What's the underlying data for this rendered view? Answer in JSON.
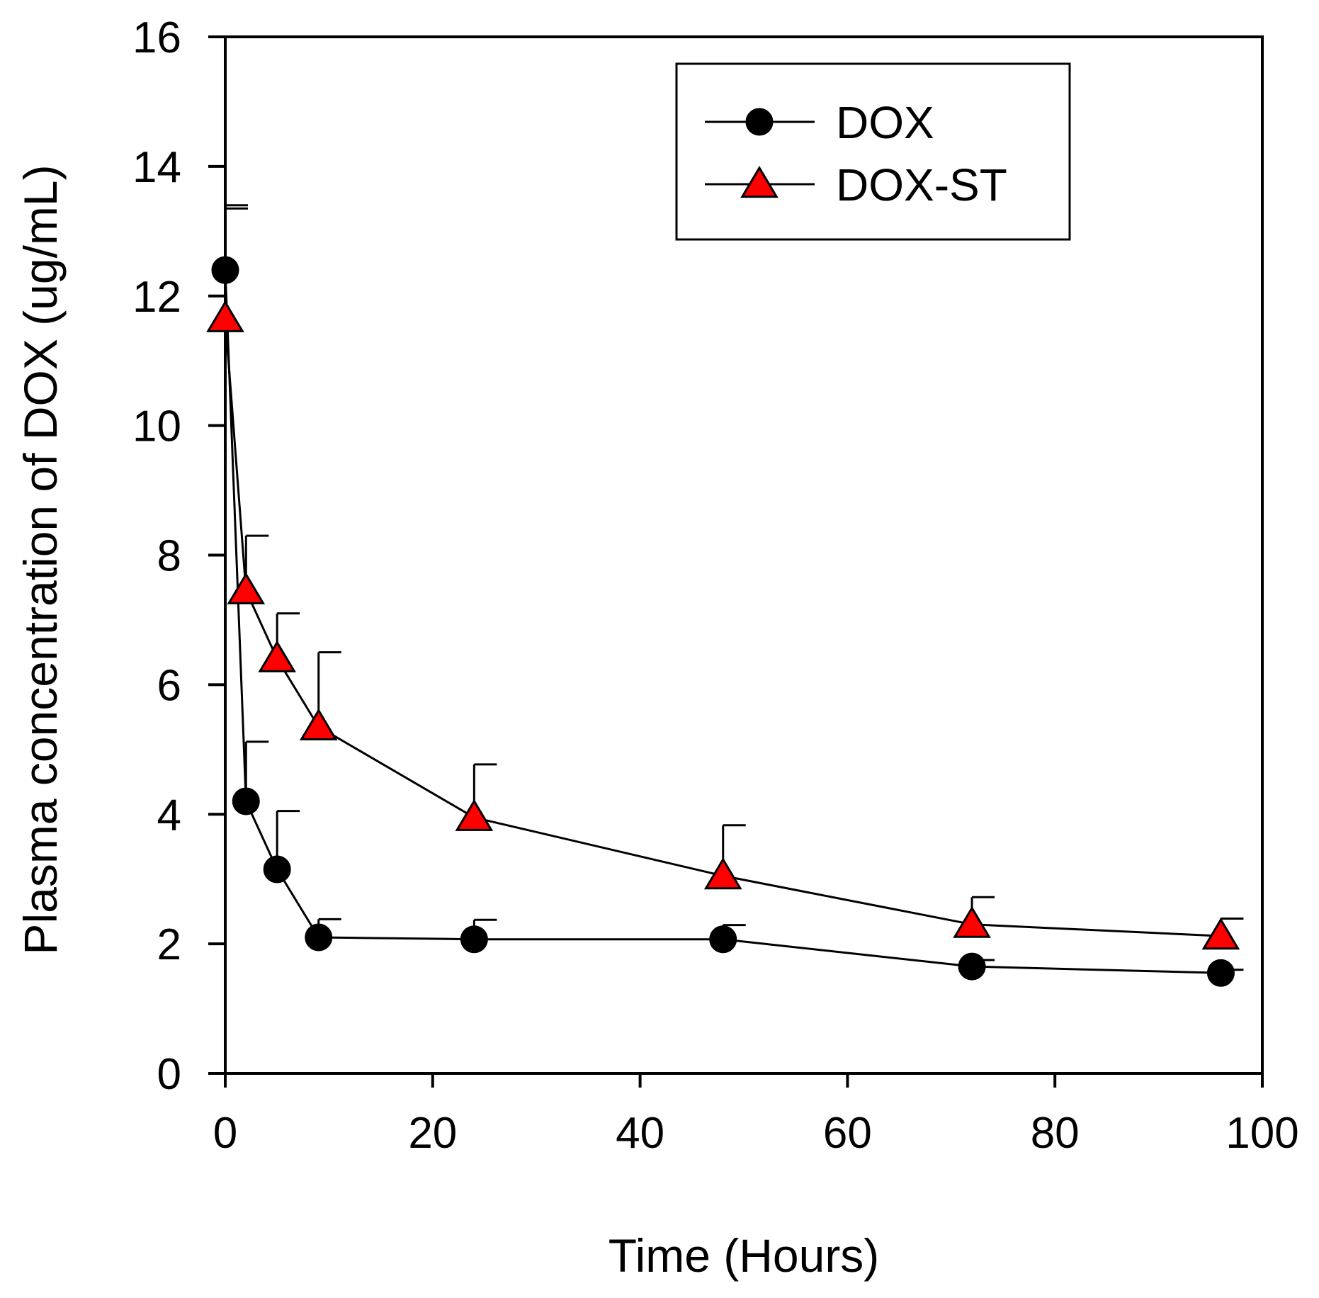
{
  "chart_data": {
    "type": "line",
    "xlabel": "Time (Hours)",
    "ylabel": "Plasma concentration of DOX (ug/mL)",
    "xlim": [
      0,
      100
    ],
    "ylim": [
      0,
      16
    ],
    "xticks": [
      0,
      20,
      40,
      60,
      80,
      100
    ],
    "yticks": [
      0,
      2,
      4,
      6,
      8,
      10,
      12,
      14,
      16
    ],
    "grid": false,
    "legend_position": "top-right",
    "series": [
      {
        "name": "DOX",
        "marker": "circle",
        "color": "#000000",
        "x": [
          0,
          2,
          5,
          9,
          24,
          48,
          72,
          96
        ],
        "y": [
          12.4,
          4.2,
          3.15,
          2.1,
          2.07,
          2.07,
          1.65,
          1.55
        ],
        "error": [
          1.0,
          0.92,
          0.9,
          0.28,
          0.3,
          0.22,
          0.1,
          0.05
        ]
      },
      {
        "name": "DOX-ST",
        "marker": "triangle",
        "color": "#ff0000",
        "x": [
          0,
          2,
          5,
          9,
          24,
          48,
          72,
          96
        ],
        "y": [
          11.65,
          7.45,
          6.4,
          5.35,
          3.95,
          3.05,
          2.3,
          2.12
        ],
        "error": [
          1.7,
          0.85,
          0.7,
          1.15,
          0.82,
          0.78,
          0.42,
          0.27
        ]
      }
    ]
  }
}
